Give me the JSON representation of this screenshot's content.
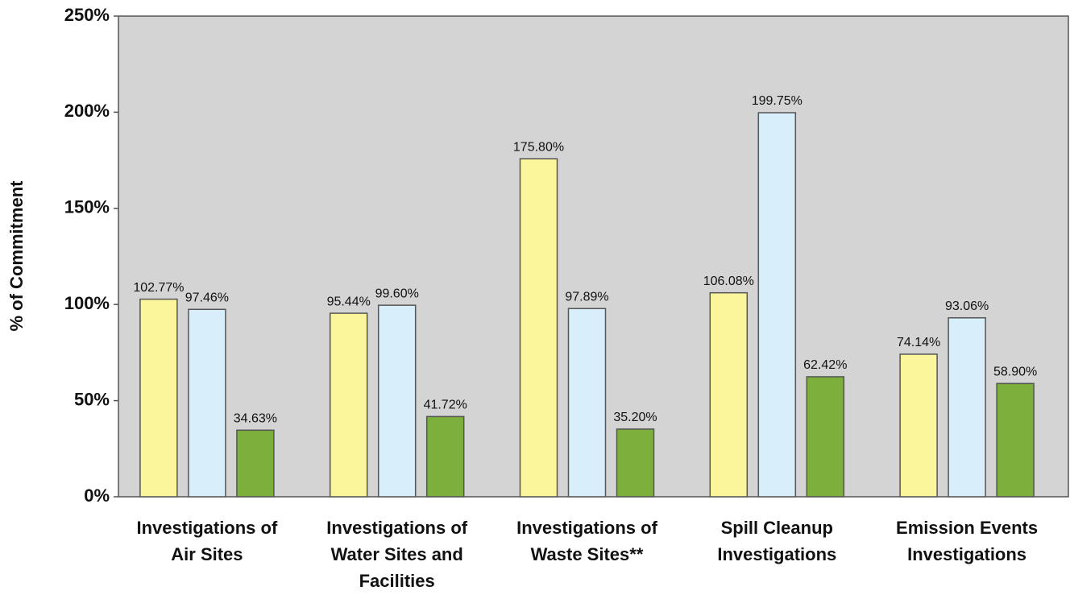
{
  "chart_data": {
    "type": "bar",
    "y_label": "% of Commitment",
    "categories": [
      [
        "Investigations of",
        "Air Sites"
      ],
      [
        "Investigations of",
        "Water Sites and",
        "Facilities"
      ],
      [
        "Investigations of",
        "Waste Sites**"
      ],
      [
        "Spill Cleanup",
        "Investigations"
      ],
      [
        "Emission Events",
        "Investigations"
      ]
    ],
    "series": [
      {
        "color": "#fbf69c",
        "values": [
          102.77,
          95.44,
          175.8,
          106.08,
          74.14
        ],
        "value_labels": [
          "102.77%",
          "95.44%",
          "175.80%",
          "106.08%",
          "74.14%"
        ]
      },
      {
        "color": "#d8eefa",
        "values": [
          97.46,
          99.6,
          97.89,
          199.75,
          93.06
        ],
        "value_labels": [
          "97.46%",
          "99.60%",
          "97.89%",
          "199.75%",
          "93.06%"
        ]
      },
      {
        "color": "#7caf3c",
        "values": [
          34.63,
          41.72,
          35.2,
          62.42,
          58.9
        ],
        "value_labels": [
          "34.63%",
          "41.72%",
          "35.20%",
          "62.42%",
          "58.90%"
        ]
      }
    ],
    "ylim": [
      0,
      250
    ],
    "yticks": [
      {
        "value": 0,
        "label": "0%"
      },
      {
        "value": 50,
        "label": "50%"
      },
      {
        "value": 100,
        "label": "100%"
      },
      {
        "value": 150,
        "label": "150%"
      },
      {
        "value": 200,
        "label": "200%"
      },
      {
        "value": 250,
        "label": "250%"
      }
    ],
    "plot_background": "#d4d4d4"
  }
}
